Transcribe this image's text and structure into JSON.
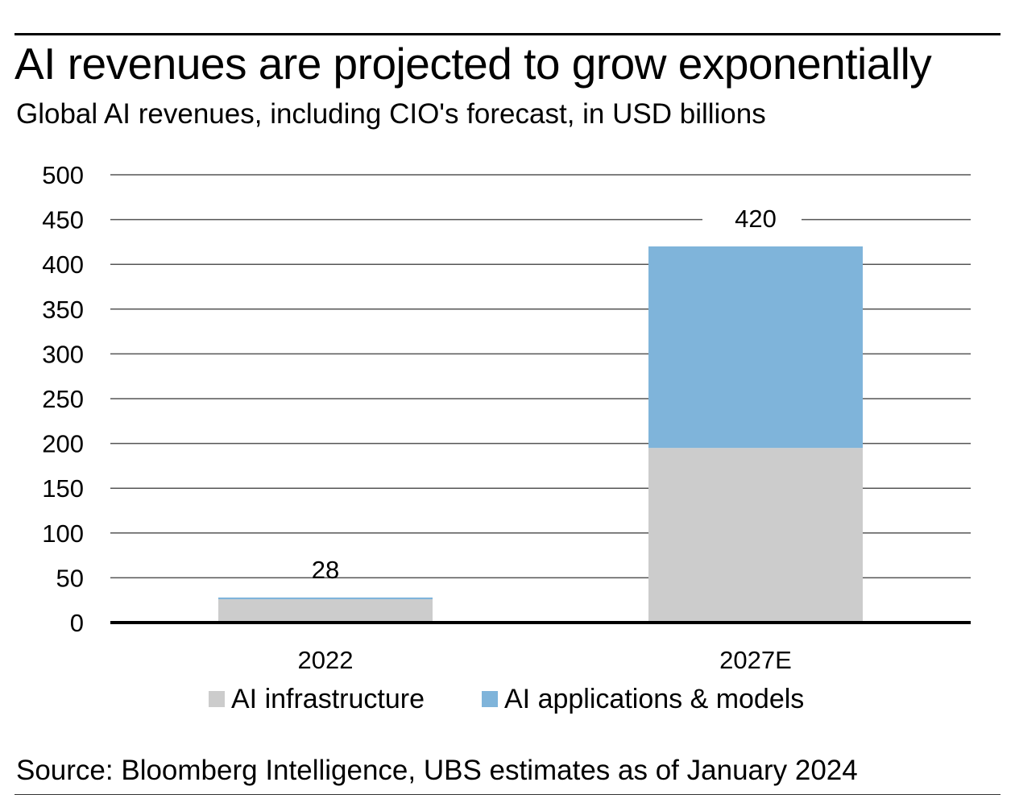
{
  "chart_data": {
    "type": "bar",
    "stacked": true,
    "title": "AI revenues are projected to grow exponentially",
    "subtitle": "Global AI revenues, including CIO's forecast, in USD billions",
    "categories": [
      "2022",
      "2027E"
    ],
    "series": [
      {
        "name": "AI infrastructure",
        "color": "#cccccc",
        "values": [
          26,
          195
        ]
      },
      {
        "name": "AI applications & models",
        "color": "#7fb4da",
        "values": [
          2,
          225
        ]
      }
    ],
    "totals": [
      28,
      420
    ],
    "total_labels": [
      "28",
      "420"
    ],
    "xlabel": "",
    "ylabel": "",
    "ylim": [
      0,
      500
    ],
    "yticks": [
      0,
      50,
      100,
      150,
      200,
      250,
      300,
      350,
      400,
      450,
      500
    ],
    "grid": true,
    "legend_position": "bottom-center",
    "source": "Source: Bloomberg Intelligence, UBS estimates as of January 2024"
  }
}
